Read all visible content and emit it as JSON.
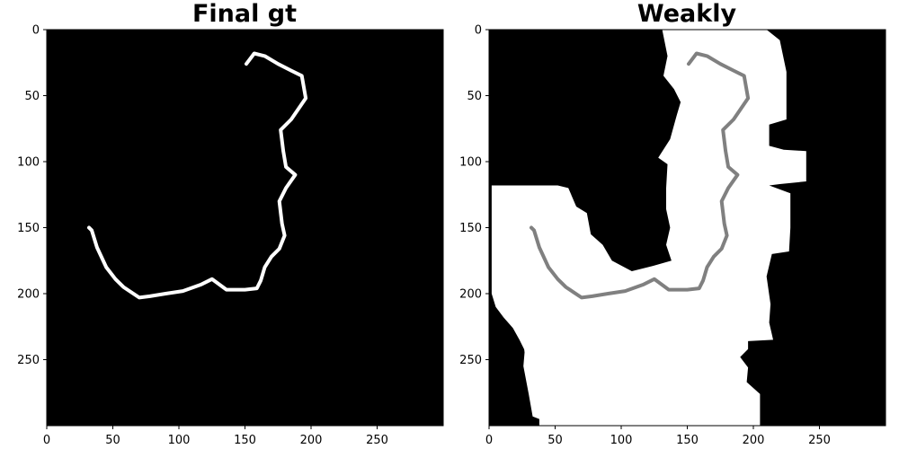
{
  "panels": [
    {
      "title": "Final gt",
      "x_ticks": [
        "0",
        "50",
        "100",
        "150",
        "200",
        "250"
      ],
      "y_ticks": [
        "0",
        "50",
        "100",
        "150",
        "200",
        "250"
      ],
      "background": "#000000",
      "curve_color": "#ffffff"
    },
    {
      "title": "Weakly",
      "x_ticks": [
        "0",
        "50",
        "100",
        "150",
        "200",
        "250"
      ],
      "y_ticks": [
        "0",
        "50",
        "100",
        "150",
        "200",
        "250"
      ],
      "background": "#000000",
      "mask_color": "#ffffff",
      "curve_color": "#808080"
    }
  ],
  "chart_data": {
    "type": "image",
    "image_extent": {
      "x": [
        0,
        300
      ],
      "y": [
        0,
        300
      ]
    },
    "y_axis_inverted": true,
    "curve": [
      [
        151,
        26
      ],
      [
        157,
        18
      ],
      [
        165,
        20
      ],
      [
        175,
        26
      ],
      [
        185,
        31
      ],
      [
        193,
        35
      ],
      [
        196,
        52
      ],
      [
        185,
        68
      ],
      [
        177,
        76
      ],
      [
        179,
        92
      ],
      [
        181,
        104
      ],
      [
        188,
        110
      ],
      [
        181,
        120
      ],
      [
        176,
        130
      ],
      [
        178,
        147
      ],
      [
        180,
        156
      ],
      [
        176,
        166
      ],
      [
        170,
        172
      ],
      [
        165,
        180
      ],
      [
        162,
        190
      ],
      [
        159,
        196
      ],
      [
        150,
        197
      ],
      [
        136,
        197
      ],
      [
        125,
        189
      ],
      [
        117,
        193
      ],
      [
        103,
        198
      ],
      [
        90,
        200
      ],
      [
        78,
        202
      ],
      [
        70,
        203
      ],
      [
        58,
        195
      ],
      [
        52,
        189
      ],
      [
        45,
        180
      ],
      [
        38,
        165
      ],
      [
        34,
        152
      ],
      [
        32,
        150
      ]
    ],
    "weak_mask_polygons": [
      [
        [
          131,
          0
        ],
        [
          210,
          0
        ],
        [
          220,
          8
        ],
        [
          225,
          32
        ],
        [
          225,
          68
        ],
        [
          212,
          72
        ],
        [
          212,
          88
        ],
        [
          223,
          91
        ],
        [
          240,
          92
        ],
        [
          240,
          115
        ],
        [
          220,
          117
        ],
        [
          212,
          118
        ],
        [
          228,
          124
        ],
        [
          228,
          150
        ],
        [
          227,
          168
        ],
        [
          214,
          170
        ],
        [
          210,
          187
        ],
        [
          213,
          208
        ],
        [
          212,
          222
        ],
        [
          215,
          235
        ],
        [
          196,
          236
        ],
        [
          196,
          242
        ],
        [
          190,
          248
        ],
        [
          196,
          256
        ],
        [
          195,
          267
        ],
        [
          205,
          276
        ],
        [
          205,
          300
        ],
        [
          38,
          300
        ],
        [
          38,
          295
        ],
        [
          33,
          293
        ],
        [
          30,
          276
        ],
        [
          26,
          255
        ],
        [
          27,
          243
        ],
        [
          23,
          235
        ],
        [
          18,
          226
        ],
        [
          11,
          218
        ],
        [
          5,
          210
        ],
        [
          2,
          200
        ],
        [
          2,
          118
        ],
        [
          43,
          118
        ],
        [
          52,
          118
        ],
        [
          60,
          120
        ],
        [
          66,
          134
        ],
        [
          74,
          139
        ],
        [
          77,
          155
        ],
        [
          86,
          163
        ],
        [
          93,
          175
        ],
        [
          108,
          183
        ],
        [
          124,
          179
        ],
        [
          138,
          175
        ],
        [
          134,
          163
        ],
        [
          137,
          150
        ],
        [
          134,
          136
        ],
        [
          134,
          120
        ],
        [
          135,
          102
        ],
        [
          128,
          97
        ],
        [
          137,
          83
        ],
        [
          142,
          65
        ],
        [
          145,
          55
        ],
        [
          140,
          45
        ],
        [
          132,
          35
        ],
        [
          135,
          20
        ]
      ],
      [
        [
          26,
          236
        ],
        [
          42,
          233
        ],
        [
          54,
          246
        ],
        [
          70,
          251
        ],
        [
          72,
          265
        ],
        [
          74,
          279
        ],
        [
          70,
          300
        ],
        [
          56,
          300
        ],
        [
          50,
          282
        ],
        [
          40,
          270
        ],
        [
          29,
          265
        ]
      ],
      [
        [
          99,
          255
        ],
        [
          110,
          242
        ],
        [
          117,
          234
        ],
        [
          123,
          212
        ],
        [
          127,
          216
        ],
        [
          130,
          232
        ],
        [
          128,
          238
        ],
        [
          119,
          244
        ],
        [
          114,
          257
        ],
        [
          117,
          272
        ],
        [
          117,
          300
        ],
        [
          96,
          300
        ],
        [
          93,
          291
        ],
        [
          92,
          279
        ],
        [
          95,
          266
        ]
      ]
    ]
  }
}
